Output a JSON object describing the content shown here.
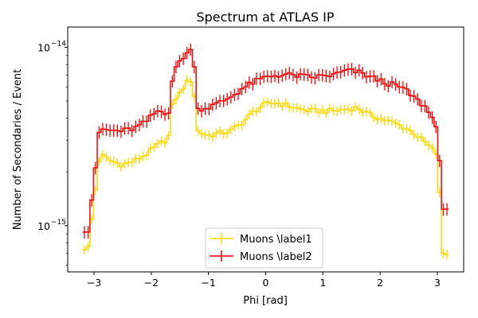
{
  "chart_data": {
    "type": "line",
    "drawstyle": "steps-mid-with-errorbars",
    "title": "Spectrum at ATLAS IP",
    "xlabel": "Phi [rad]",
    "ylabel": "Number of Secondaries / Event",
    "xlim": [
      -3.46,
      3.46
    ],
    "ylim": [
      5.5e-16,
      1.3e-14
    ],
    "yscale": "log",
    "x_ticks": [
      -3,
      -2,
      -1,
      0,
      1,
      2,
      3
    ],
    "x_tick_labels": [
      "−3",
      "−2",
      "−1",
      "0",
      "1",
      "2",
      "3"
    ],
    "y_ticks": [
      1e-15,
      1e-14
    ],
    "y_tick_base": "10",
    "y_tick_exponents": [
      "−15",
      "−14"
    ],
    "legend_position": "lower center",
    "series": [
      {
        "name": "Muons \\label1",
        "color": "#FFD700",
        "x": [
          -3.1,
          -2.9,
          -2.7,
          -2.5,
          -2.3,
          -2.1,
          -1.9,
          -1.7,
          -1.62,
          -1.5,
          -1.4,
          -1.3,
          -1.26,
          -1.2,
          -1.0,
          -0.8,
          -0.6,
          -0.4,
          -0.2,
          0.0,
          0.2,
          0.4,
          0.6,
          0.8,
          1.0,
          1.2,
          1.4,
          1.6,
          1.8,
          2.0,
          2.2,
          2.4,
          2.6,
          2.8,
          3.0,
          3.1
        ],
        "y": [
          7.5e-16,
          2.5e-15,
          2.3e-15,
          2.2e-15,
          2.3e-15,
          2.5e-15,
          2.8e-15,
          3.1e-15,
          5e-15,
          5.5e-15,
          6.3e-15,
          6.6e-15,
          6e-15,
          3.4e-15,
          3.2e-15,
          3.3e-15,
          3.4e-15,
          3.8e-15,
          4.4e-15,
          4.8e-15,
          4.9e-15,
          4.7e-15,
          4.5e-15,
          4.4e-15,
          4.4e-15,
          4.4e-15,
          4.5e-15,
          4.6e-15,
          4.2e-15,
          4e-15,
          3.8e-15,
          3.6e-15,
          3.3e-15,
          2.9e-15,
          2.5e-15,
          7e-16
        ],
        "yerr_frac": 0.06
      },
      {
        "name": "Muons \\label2",
        "color": "#FF0000",
        "x": [
          -3.1,
          -2.9,
          -2.7,
          -2.5,
          -2.3,
          -2.1,
          -1.9,
          -1.7,
          -1.62,
          -1.5,
          -1.4,
          -1.3,
          -1.26,
          -1.2,
          -1.0,
          -0.8,
          -0.6,
          -0.4,
          -0.2,
          0.0,
          0.2,
          0.4,
          0.6,
          0.8,
          1.0,
          1.2,
          1.4,
          1.6,
          1.8,
          2.0,
          2.2,
          2.4,
          2.6,
          2.8,
          3.0,
          3.1
        ],
        "y": [
          9.5e-16,
          3.5e-15,
          3.4e-15,
          3.4e-15,
          3.5e-15,
          3.8e-15,
          4.4e-15,
          4.3e-15,
          7e-15,
          8.4e-15,
          9.2e-15,
          9.6e-15,
          9.3e-15,
          4.5e-15,
          4.6e-15,
          4.9e-15,
          5.3e-15,
          5.9e-15,
          6.4e-15,
          6.8e-15,
          7e-15,
          7e-15,
          6.9e-15,
          6.8e-15,
          6.9e-15,
          7e-15,
          7.4e-15,
          7.3e-15,
          6.9e-15,
          6.5e-15,
          6.2e-15,
          5.9e-15,
          5.2e-15,
          4.6e-15,
          3.6e-15,
          1.2e-15
        ],
        "yerr_frac": 0.08
      }
    ]
  }
}
